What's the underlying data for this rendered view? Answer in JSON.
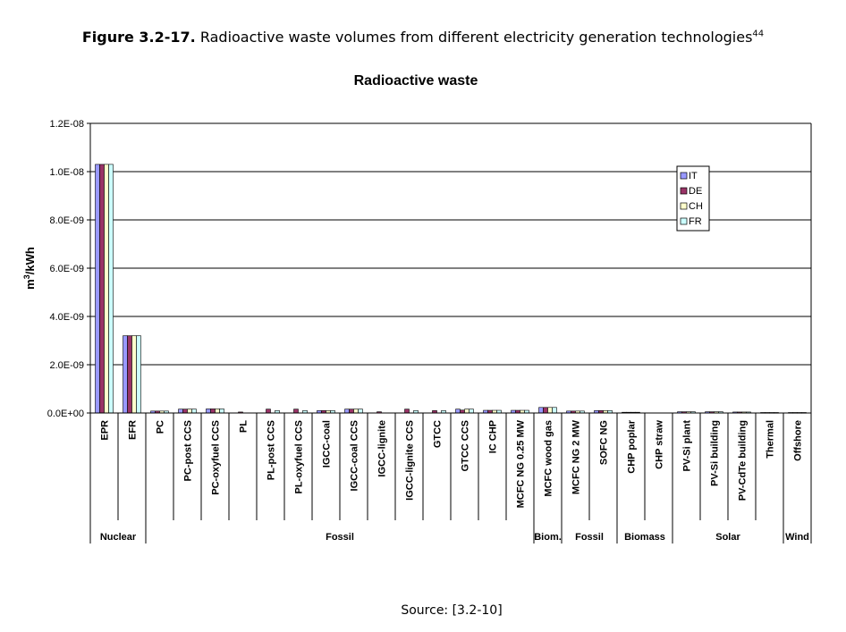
{
  "caption": {
    "label": "Figure 3.2-17.",
    "text": "Radioactive waste volumes from different electricity generation technologies",
    "ref": "44"
  },
  "source": "Source: [3.2-10]",
  "chart_data": {
    "type": "bar",
    "title": "Radioactive waste",
    "xlabel": "",
    "ylabel": "m3/kWh",
    "ylim": [
      0,
      1.2e-08
    ],
    "yticks": [
      "0.0E+00",
      "2.0E-09",
      "4.0E-09",
      "6.0E-09",
      "8.0E-09",
      "1.0E-08",
      "1.2E-08"
    ],
    "legend_position": "top-right",
    "grid": true,
    "categories": [
      "EPR",
      "EFR",
      "PC",
      "PC-post CCS",
      "PC-oxyfuel CCS",
      "PL",
      "PL-post CCS",
      "PL-oxyfuel CCS",
      "IGCC-coal",
      "IGCC-coal CCS",
      "IGCC-lignite",
      "IGCC-lignite CCS",
      "GTCC",
      "GTCC CCS",
      "IC CHP",
      "MCFC NG 0.25 MW",
      "MCFC wood gas",
      "MCFC NG 2 MW",
      "SOFC NG",
      "CHP poplar",
      "CHP straw",
      "PV-Si plant",
      "PV-Si building",
      "PV-CdTe building",
      "Thermal",
      "Offshore"
    ],
    "groups": [
      {
        "label": "Nuclear",
        "start": 0,
        "end": 2
      },
      {
        "label": "Fossil",
        "start": 2,
        "end": 16
      },
      {
        "label": "Biom.",
        "start": 16,
        "end": 17
      },
      {
        "label": "Fossil",
        "start": 17,
        "end": 19
      },
      {
        "label": "Biomass",
        "start": 19,
        "end": 21
      },
      {
        "label": "Solar",
        "start": 21,
        "end": 25
      },
      {
        "label": "Wind",
        "start": 25,
        "end": 26
      }
    ],
    "series": [
      {
        "name": "IT",
        "color": "#9999ff",
        "values": [
          1.03e-08,
          3.2e-09,
          8e-11,
          1.6e-10,
          1.7e-10,
          0,
          0,
          0,
          1e-10,
          1.6e-10,
          0,
          0,
          0,
          1.6e-10,
          1.1e-10,
          1.1e-10,
          2.3e-10,
          8e-11,
          1e-10,
          3e-11,
          0,
          5e-11,
          5e-11,
          4e-11,
          2e-11,
          2e-11
        ]
      },
      {
        "name": "DE",
        "color": "#993366",
        "values": [
          1.03e-08,
          3.2e-09,
          8e-11,
          1.6e-10,
          1.7e-10,
          4e-11,
          1.6e-10,
          1.6e-10,
          1e-10,
          1.6e-10,
          5e-11,
          1.6e-10,
          1e-10,
          1.2e-10,
          1.1e-10,
          1.1e-10,
          2.3e-10,
          8e-11,
          1e-10,
          3e-11,
          0,
          5e-11,
          5e-11,
          4e-11,
          2e-11,
          2e-11
        ]
      },
      {
        "name": "CH",
        "color": "#ffffcc",
        "values": [
          1.03e-08,
          3.2e-09,
          8e-11,
          1.6e-10,
          1.7e-10,
          0,
          0,
          0,
          1e-10,
          1.6e-10,
          0,
          0,
          0,
          1.6e-10,
          1.1e-10,
          1.1e-10,
          2.3e-10,
          8e-11,
          1e-10,
          3e-11,
          0,
          5e-11,
          5e-11,
          4e-11,
          2e-11,
          2e-11
        ]
      },
      {
        "name": "FR",
        "color": "#ccffff",
        "values": [
          1.03e-08,
          3.2e-09,
          8e-11,
          1.6e-10,
          1.7e-10,
          0,
          1e-10,
          1e-10,
          1e-10,
          1.6e-10,
          0,
          1e-10,
          1e-10,
          1.6e-10,
          1.1e-10,
          1.1e-10,
          2.3e-10,
          8e-11,
          1e-10,
          3e-11,
          0,
          5e-11,
          5e-11,
          4e-11,
          2e-11,
          2e-11
        ]
      }
    ]
  }
}
